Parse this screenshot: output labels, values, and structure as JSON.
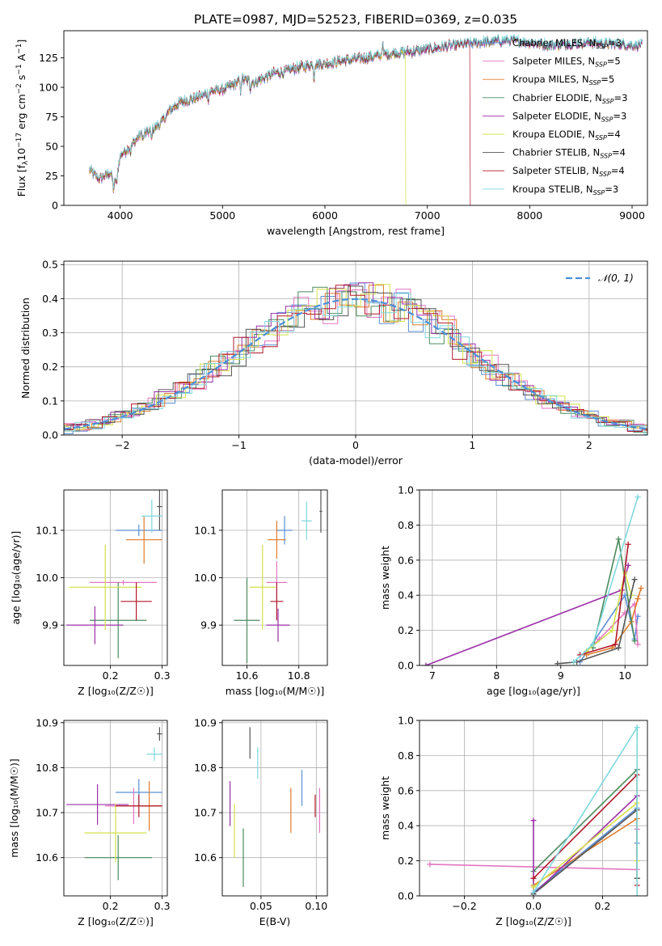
{
  "figure_title": "PLATE=0987, MJD=52523, FIBERID=0369, z=0.035",
  "chart_data": [
    {
      "id": "spectrum",
      "type": "line",
      "xlabel": "wavelength [Angstrom, rest frame]",
      "ylabel_parts": [
        "Flux [f",
        "λ",
        "10",
        "−17",
        " erg cm",
        "−2",
        " s",
        "−1",
        " A",
        "−1",
        "]"
      ],
      "xlim": [
        3450,
        9150
      ],
      "ylim": [
        0,
        148
      ],
      "xticks": [
        4000,
        5000,
        6000,
        7000,
        8000,
        9000
      ],
      "yticks": [
        0,
        25,
        50,
        75,
        100,
        125
      ],
      "legend_position": "upper right",
      "series": [
        {
          "name": "Chabrier MILES",
          "nssp": "3",
          "color": "#5b8fd6"
        },
        {
          "name": "Salpeter MILES",
          "nssp": "5",
          "color": "#e377c2"
        },
        {
          "name": "Kroupa MILES",
          "nssp": "5",
          "color": "#e07b2c"
        },
        {
          "name": "Chabrier ELODIE",
          "nssp": "3",
          "color": "#4b8a5e"
        },
        {
          "name": "Salpeter ELODIE",
          "nssp": "3",
          "color": "#9b30a8"
        },
        {
          "name": "Kroupa ELODIE",
          "nssp": "4",
          "color": "#d4e04a"
        },
        {
          "name": "Chabrier STELIB",
          "nssp": "4",
          "color": "#555555"
        },
        {
          "name": "Salpeter STELIB",
          "nssp": "4",
          "color": "#b2182b"
        },
        {
          "name": "Kroupa STELIB",
          "nssp": "3",
          "color": "#7fd8dc"
        }
      ],
      "spectrum_knots": [
        [
          3700,
          30
        ],
        [
          3800,
          22
        ],
        [
          3900,
          28
        ],
        [
          3950,
          18
        ],
        [
          4000,
          42
        ],
        [
          4100,
          50
        ],
        [
          4200,
          60
        ],
        [
          4300,
          63
        ],
        [
          4400,
          70
        ],
        [
          4500,
          82
        ],
        [
          4600,
          88
        ],
        [
          4700,
          90
        ],
        [
          4800,
          93
        ],
        [
          4900,
          97
        ],
        [
          5000,
          98
        ],
        [
          5100,
          102
        ],
        [
          5200,
          107
        ],
        [
          5300,
          104
        ],
        [
          5400,
          108
        ],
        [
          5500,
          112
        ],
        [
          5600,
          113
        ],
        [
          5700,
          116
        ],
        [
          5800,
          118
        ],
        [
          5900,
          120
        ],
        [
          6000,
          120
        ],
        [
          6200,
          123
        ],
        [
          6400,
          125
        ],
        [
          6600,
          128
        ],
        [
          6800,
          130
        ],
        [
          7000,
          132
        ],
        [
          7200,
          135
        ],
        [
          7400,
          137
        ],
        [
          7600,
          139
        ],
        [
          7800,
          140
        ],
        [
          8000,
          138
        ],
        [
          8200,
          136
        ],
        [
          8400,
          137
        ],
        [
          8600,
          138
        ],
        [
          8800,
          137
        ],
        [
          9000,
          136
        ],
        [
          9100,
          136
        ]
      ],
      "absorption_lines": [
        [
          3934,
          8
        ],
        [
          3969,
          10
        ],
        [
          4102,
          6
        ],
        [
          4227,
          6
        ],
        [
          4305,
          8
        ],
        [
          4862,
          6
        ],
        [
          5175,
          10
        ],
        [
          5270,
          6
        ],
        [
          5893,
          14
        ],
        [
          6563,
          -12
        ],
        [
          7600,
          4
        ]
      ],
      "dropouts": [
        {
          "series": "Kroupa ELODIE",
          "x": 6790
        },
        {
          "series": "Salpeter STELIB",
          "x": 7420
        }
      ]
    },
    {
      "id": "residuals",
      "type": "histogram",
      "xlabel": "(data-model)/error",
      "ylabel": "Normed distribution",
      "xlim": [
        -2.5,
        2.5
      ],
      "ylim": [
        0,
        0.51
      ],
      "xticks": [
        -2,
        -1,
        0,
        1,
        2
      ],
      "yticks": [
        0.0,
        0.1,
        0.2,
        0.3,
        0.4,
        0.5
      ],
      "bin_width": 0.125,
      "curve_label": "𝒩(0, 1)",
      "curve_color": "#4a90d9",
      "legend_position": "upper right"
    },
    {
      "id": "z-age",
      "type": "errorbar",
      "xlabel": "Z [log₁₀(Z/Z☉)]",
      "ylabel": "age  [log₁₀(age/yr)]",
      "xlim": [
        0.11,
        0.31
      ],
      "ylim": [
        9.815,
        10.185
      ],
      "xticks": [
        0.2,
        0.3
      ],
      "yticks": [
        9.9,
        10.0,
        10.1
      ],
      "points": [
        {
          "series": "Chabrier MILES",
          "x": 0.255,
          "xerr": 0.045,
          "y": 10.1,
          "yerr": 0.012
        },
        {
          "series": "Salpeter MILES",
          "x": 0.225,
          "xerr": 0.065,
          "y": 9.99,
          "yerr": 0.005
        },
        {
          "series": "Kroupa MILES",
          "x": 0.265,
          "xerr": 0.035,
          "y": 10.08,
          "yerr": 0.05
        },
        {
          "series": "Chabrier ELODIE",
          "x": 0.215,
          "xerr": 0.055,
          "y": 9.91,
          "yerr": 0.08
        },
        {
          "series": "Salpeter ELODIE",
          "x": 0.17,
          "xerr": 0.055,
          "y": 9.9,
          "yerr": 0.04
        },
        {
          "series": "Kroupa ELODIE",
          "x": 0.19,
          "xerr": 0.07,
          "y": 9.98,
          "yerr": 0.09
        },
        {
          "series": "Chabrier STELIB",
          "x": 0.295,
          "xerr": 0.005,
          "y": 10.15,
          "yerr": 0.05
        },
        {
          "series": "Salpeter STELIB",
          "x": 0.25,
          "xerr": 0.03,
          "y": 9.95,
          "yerr": 0.04
        },
        {
          "series": "Kroupa STELIB",
          "x": 0.28,
          "xerr": 0.02,
          "y": 10.13,
          "yerr": 0.035
        }
      ]
    },
    {
      "id": "mass-age",
      "type": "errorbar",
      "xlabel": "mass [log₁₀(M/M☉)]",
      "ylabel": "",
      "xlim": [
        10.505,
        10.91
      ],
      "ylim": [
        9.815,
        10.185
      ],
      "xticks": [
        10.6,
        10.8
      ],
      "yticks": [
        9.9,
        10.0,
        10.1
      ],
      "points": [
        {
          "series": "Chabrier MILES",
          "x": 10.745,
          "xerr": 0.03,
          "y": 10.1,
          "yerr": 0.03
        },
        {
          "series": "Salpeter MILES",
          "x": 10.715,
          "xerr": 0.04,
          "y": 9.99,
          "yerr": 0.045
        },
        {
          "series": "Kroupa MILES",
          "x": 10.715,
          "xerr": 0.035,
          "y": 10.08,
          "yerr": 0.04
        },
        {
          "series": "Chabrier ELODIE",
          "x": 10.6,
          "xerr": 0.05,
          "y": 9.91,
          "yerr": 0.09
        },
        {
          "series": "Salpeter ELODIE",
          "x": 10.72,
          "xerr": 0.045,
          "y": 9.9,
          "yerr": 0.035
        },
        {
          "series": "Kroupa ELODIE",
          "x": 10.66,
          "xerr": 0.05,
          "y": 9.98,
          "yerr": 0.09
        },
        {
          "series": "Chabrier STELIB",
          "x": 10.885,
          "xerr": 0.005,
          "y": 10.14,
          "yerr": 0.045
        },
        {
          "series": "Salpeter STELIB",
          "x": 10.715,
          "xerr": 0.025,
          "y": 9.95,
          "yerr": 0.04
        },
        {
          "series": "Kroupa STELIB",
          "x": 10.83,
          "xerr": 0.02,
          "y": 10.12,
          "yerr": 0.04
        }
      ]
    },
    {
      "id": "age-weight",
      "type": "line",
      "xlabel": "age  [log₁₀(age/yr)]",
      "ylabel": "mass weight",
      "xlim": [
        6.8,
        10.35
      ],
      "ylim": [
        0,
        1.0
      ],
      "xticks": [
        7,
        8,
        9,
        10
      ],
      "yticks": [
        0.0,
        0.2,
        0.4,
        0.6,
        0.8,
        1.0
      ],
      "series": [
        {
          "series": "Chabrier MILES",
          "points": [
            [
              9.3,
              0.02
            ],
            [
              10.0,
              0.4
            ],
            [
              10.15,
              0.15
            ],
            [
              10.2,
              0.28
            ]
          ]
        },
        {
          "series": "Salpeter MILES",
          "points": [
            [
              9.4,
              0.08
            ],
            [
              9.6,
              0.15
            ],
            [
              10.0,
              0.3
            ],
            [
              10.15,
              0.35
            ],
            [
              10.2,
              0.12
            ]
          ]
        },
        {
          "series": "Kroupa MILES",
          "points": [
            [
              9.4,
              0.06
            ],
            [
              9.8,
              0.1
            ],
            [
              10.1,
              0.25
            ],
            [
              10.2,
              0.38
            ],
            [
              10.25,
              0.44
            ]
          ]
        },
        {
          "series": "Chabrier ELODIE",
          "points": [
            [
              9.5,
              0.1
            ],
            [
              9.9,
              0.72
            ],
            [
              10.15,
              0.14
            ]
          ]
        },
        {
          "series": "Salpeter ELODIE",
          "points": [
            [
              6.9,
              0.0
            ],
            [
              9.95,
              0.43
            ],
            [
              10.05,
              0.57
            ]
          ]
        },
        {
          "series": "Kroupa ELODIE",
          "points": [
            [
              9.4,
              0.08
            ],
            [
              9.8,
              0.2
            ],
            [
              10.0,
              0.53
            ],
            [
              10.1,
              0.4
            ]
          ]
        },
        {
          "series": "Chabrier STELIB",
          "points": [
            [
              8.95,
              0.01
            ],
            [
              9.25,
              0.02
            ],
            [
              9.9,
              0.1
            ],
            [
              10.15,
              0.49
            ]
          ]
        },
        {
          "series": "Salpeter STELIB",
          "points": [
            [
              9.3,
              0.06
            ],
            [
              9.85,
              0.12
            ],
            [
              10.05,
              0.69
            ]
          ]
        },
        {
          "series": "Kroupa STELIB",
          "points": [
            [
              9.2,
              0.02
            ],
            [
              9.5,
              0.12
            ],
            [
              10.2,
              0.96
            ]
          ]
        }
      ]
    },
    {
      "id": "z-mass",
      "type": "errorbar",
      "xlabel": "Z [log₁₀(Z/Z☉)]",
      "ylabel": "mass [log₁₀(M/M☉)]",
      "xlim": [
        0.11,
        0.31
      ],
      "ylim": [
        10.515,
        10.905
      ],
      "xticks": [
        0.2,
        0.3
      ],
      "yticks": [
        10.6,
        10.7,
        10.8,
        10.9
      ],
      "points": [
        {
          "series": "Chabrier MILES",
          "x": 0.255,
          "xerr": 0.045,
          "y": 10.745,
          "yerr": 0.03
        },
        {
          "series": "Salpeter MILES",
          "x": 0.245,
          "xerr": 0.055,
          "y": 10.715,
          "yerr": 0.04
        },
        {
          "series": "Kroupa MILES",
          "x": 0.275,
          "xerr": 0.025,
          "y": 10.715,
          "yerr": 0.055
        },
        {
          "series": "Chabrier ELODIE",
          "x": 0.215,
          "xerr": 0.065,
          "y": 10.6,
          "yerr": 0.05
        },
        {
          "series": "Salpeter ELODIE",
          "x": 0.175,
          "xerr": 0.06,
          "y": 10.718,
          "yerr": 0.045
        },
        {
          "series": "Kroupa ELODIE",
          "x": 0.21,
          "xerr": 0.06,
          "y": 10.655,
          "yerr": 0.065
        },
        {
          "series": "Chabrier STELIB",
          "x": 0.295,
          "xerr": 0.005,
          "y": 10.875,
          "yerr": 0.015
        },
        {
          "series": "Salpeter STELIB",
          "x": 0.255,
          "xerr": 0.045,
          "y": 10.715,
          "yerr": 0.025
        },
        {
          "series": "Kroupa STELIB",
          "x": 0.285,
          "xerr": 0.015,
          "y": 10.83,
          "yerr": 0.015
        }
      ]
    },
    {
      "id": "ebv-mass",
      "type": "errorbar",
      "xlabel": "E(B-V)",
      "ylabel": "",
      "xlim": [
        0.015,
        0.11
      ],
      "ylim": [
        10.515,
        10.905
      ],
      "xticks": [
        0.05,
        0.1
      ],
      "yticks": [
        10.6,
        10.7,
        10.8,
        10.9
      ],
      "points": [
        {
          "series": "Chabrier MILES",
          "x": 0.087,
          "xerr": 0,
          "y": 10.755,
          "yerr": 0.04
        },
        {
          "series": "Salpeter MILES",
          "x": 0.103,
          "xerr": 0,
          "y": 10.705,
          "yerr": 0.05
        },
        {
          "series": "Kroupa MILES",
          "x": 0.077,
          "xerr": 0,
          "y": 10.705,
          "yerr": 0.05
        },
        {
          "series": "Chabrier ELODIE",
          "x": 0.034,
          "xerr": 0,
          "y": 10.6,
          "yerr": 0.065
        },
        {
          "series": "Salpeter ELODIE",
          "x": 0.022,
          "xerr": 0,
          "y": 10.72,
          "yerr": 0.05
        },
        {
          "series": "Kroupa ELODIE",
          "x": 0.026,
          "xerr": 0,
          "y": 10.66,
          "yerr": 0.06
        },
        {
          "series": "Chabrier STELIB",
          "x": 0.04,
          "xerr": 0,
          "y": 10.855,
          "yerr": 0.035
        },
        {
          "series": "Salpeter STELIB",
          "x": 0.099,
          "xerr": 0,
          "y": 10.715,
          "yerr": 0.025
        },
        {
          "series": "Kroupa STELIB",
          "x": 0.047,
          "xerr": 0,
          "y": 10.81,
          "yerr": 0.035
        }
      ]
    },
    {
      "id": "z-weight",
      "type": "line",
      "xlabel": "Z [log₁₀(Z/Z☉)]",
      "ylabel": "mass weight",
      "xlim": [
        -0.33,
        0.33
      ],
      "ylim": [
        0,
        1.0
      ],
      "xticks": [
        -0.2,
        0.0,
        0.2
      ],
      "yticks": [
        0.0,
        0.2,
        0.4,
        0.6,
        0.8,
        1.0
      ],
      "series": [
        {
          "series": "Chabrier MILES",
          "points": [
            [
              0.0,
              0.02
            ],
            [
              0.3,
              0.5
            ],
            [
              0.3,
              0.3
            ]
          ]
        },
        {
          "series": "Salpeter MILES",
          "points": [
            [
              -0.3,
              0.18
            ],
            [
              0.3,
              0.15
            ],
            [
              0.3,
              0.38
            ]
          ]
        },
        {
          "series": "Kroupa MILES",
          "points": [
            [
              0.0,
              0.06
            ],
            [
              0.3,
              0.44
            ],
            [
              0.3,
              0.1
            ]
          ]
        },
        {
          "series": "Chabrier ELODIE",
          "points": [
            [
              0.0,
              0.14
            ],
            [
              0.3,
              0.72
            ],
            [
              0.3,
              0.1
            ]
          ]
        },
        {
          "series": "Salpeter ELODIE",
          "points": [
            [
              0.0,
              0.43
            ],
            [
              0.0,
              0.01
            ],
            [
              0.3,
              0.57
            ]
          ]
        },
        {
          "series": "Kroupa ELODIE",
          "points": [
            [
              0.0,
              0.05
            ],
            [
              0.3,
              0.53
            ],
            [
              0.3,
              0.2
            ]
          ]
        },
        {
          "series": "Chabrier STELIB",
          "points": [
            [
              0.0,
              0.01
            ],
            [
              0.3,
              0.49
            ],
            [
              0.3,
              0.1
            ]
          ]
        },
        {
          "series": "Salpeter STELIB",
          "points": [
            [
              0.0,
              0.1
            ],
            [
              0.3,
              0.69
            ],
            [
              0.3,
              0.06
            ]
          ]
        },
        {
          "series": "Kroupa STELIB",
          "points": [
            [
              0.0,
              0.02
            ],
            [
              0.3,
              0.96
            ],
            [
              0.3,
              0.0
            ]
          ]
        }
      ]
    }
  ]
}
